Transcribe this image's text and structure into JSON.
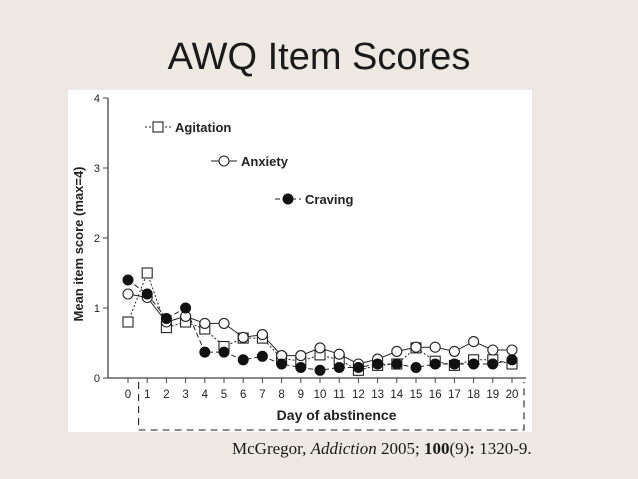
{
  "slide": {
    "title": "AWQ Item Scores",
    "citation": {
      "author": "McGregor, ",
      "journal": "Addiction",
      "year": " 2005; ",
      "volume": "100",
      "issue": "(9)",
      "colon": ": ",
      "pages": "1320-9."
    }
  },
  "colors": {
    "background": "#ede9e2",
    "axis": "#444444",
    "marker_filled": "#111111"
  },
  "chart_data": {
    "type": "line",
    "title": "",
    "xlabel": "Day of abstinence",
    "ylabel": "Mean item score (max=4)",
    "ylim": [
      0,
      4
    ],
    "yticks": [
      0,
      1,
      2,
      3,
      4
    ],
    "x": [
      0,
      1,
      2,
      3,
      4,
      5,
      6,
      7,
      8,
      9,
      10,
      11,
      12,
      13,
      14,
      15,
      16,
      17,
      18,
      19,
      20
    ],
    "legend_placement": "top-left, staggered",
    "series": [
      {
        "name": "Agitation",
        "marker": "square-open",
        "line": "dotted",
        "values": [
          0.8,
          1.5,
          0.72,
          0.8,
          0.7,
          0.45,
          0.57,
          0.57,
          0.28,
          0.24,
          0.33,
          0.26,
          0.11,
          0.18,
          0.2,
          0.43,
          0.24,
          0.18,
          0.26,
          0.26,
          0.2
        ]
      },
      {
        "name": "Anxiety",
        "marker": "circle-open",
        "line": "solid",
        "values": [
          1.2,
          1.15,
          0.8,
          0.88,
          0.78,
          0.78,
          0.58,
          0.62,
          0.32,
          0.32,
          0.43,
          0.34,
          0.2,
          0.27,
          0.38,
          0.44,
          0.44,
          0.38,
          0.52,
          0.4,
          0.4
        ]
      },
      {
        "name": "Craving",
        "marker": "circle-filled",
        "line": "dashed",
        "values": [
          1.4,
          1.2,
          0.85,
          1.0,
          0.37,
          0.37,
          0.26,
          0.31,
          0.2,
          0.15,
          0.11,
          0.15,
          0.15,
          0.2,
          0.2,
          0.15,
          0.2,
          0.2,
          0.2,
          0.2,
          0.26
        ]
      }
    ]
  }
}
